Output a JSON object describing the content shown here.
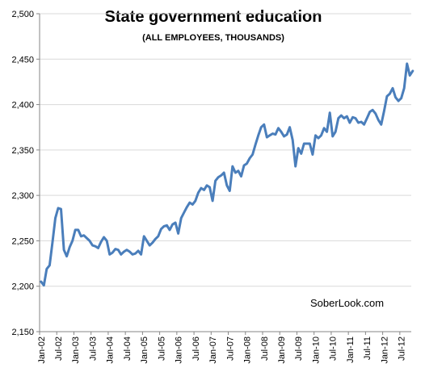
{
  "chart_data": {
    "type": "line",
    "title": "State government education",
    "subtitle": "(ALL EMPLOYEES, THOUSANDS)",
    "watermark": "SoberLook.com",
    "xlabel": "",
    "ylabel": "",
    "ylim": [
      2150,
      2500
    ],
    "yticks": [
      2150,
      2200,
      2250,
      2300,
      2350,
      2400,
      2450,
      2500
    ],
    "ytick_labels": [
      "2,150",
      "2,200",
      "2,250",
      "2,300",
      "2,350",
      "2,400",
      "2,450",
      "2,500"
    ],
    "xticks": [
      "Jan-02",
      "Jul-02",
      "Jan-03",
      "Jul-03",
      "Jan-04",
      "Jul-04",
      "Jan-05",
      "Jul-05",
      "Jan-06",
      "Jul-06",
      "Jan-07",
      "Jul-07",
      "Jan-08",
      "Jul-08",
      "Jan-09",
      "Jul-09",
      "Jan-10",
      "Jul-10",
      "Jan-11",
      "Jul-11",
      "Jan-12",
      "Jul-12"
    ],
    "grid": true,
    "legend": "none",
    "series_color": "#4a7ebb",
    "series": [
      {
        "start": "Jan-02",
        "frequency": "monthly",
        "values": [
          2205,
          2201,
          2219,
          2223,
          2248,
          2275,
          2286,
          2285,
          2240,
          2233,
          2243,
          2250,
          2262,
          2262,
          2255,
          2256,
          2253,
          2250,
          2245,
          2244,
          2242,
          2249,
          2254,
          2250,
          2235,
          2237,
          2241,
          2240,
          2235,
          2238,
          2240,
          2238,
          2235,
          2236,
          2239,
          2235,
          2255,
          2250,
          2245,
          2248,
          2252,
          2255,
          2263,
          2266,
          2267,
          2262,
          2268,
          2270,
          2258,
          2275,
          2281,
          2287,
          2292,
          2290,
          2294,
          2303,
          2308,
          2306,
          2311,
          2309,
          2294,
          2316,
          2320,
          2322,
          2325,
          2311,
          2305,
          2332,
          2325,
          2327,
          2321,
          2333,
          2335,
          2341,
          2345,
          2356,
          2366,
          2375,
          2378,
          2364,
          2366,
          2368,
          2367,
          2374,
          2370,
          2365,
          2367,
          2375,
          2361,
          2332,
          2352,
          2346,
          2357,
          2357,
          2357,
          2345,
          2366,
          2363,
          2366,
          2374,
          2370,
          2391,
          2365,
          2370,
          2385,
          2388,
          2385,
          2387,
          2380,
          2386,
          2385,
          2380,
          2381,
          2378,
          2385,
          2392,
          2394,
          2390,
          2383,
          2378,
          2393,
          2409,
          2412,
          2418,
          2408,
          2404,
          2407,
          2418,
          2445,
          2432,
          2437
        ]
      }
    ]
  }
}
